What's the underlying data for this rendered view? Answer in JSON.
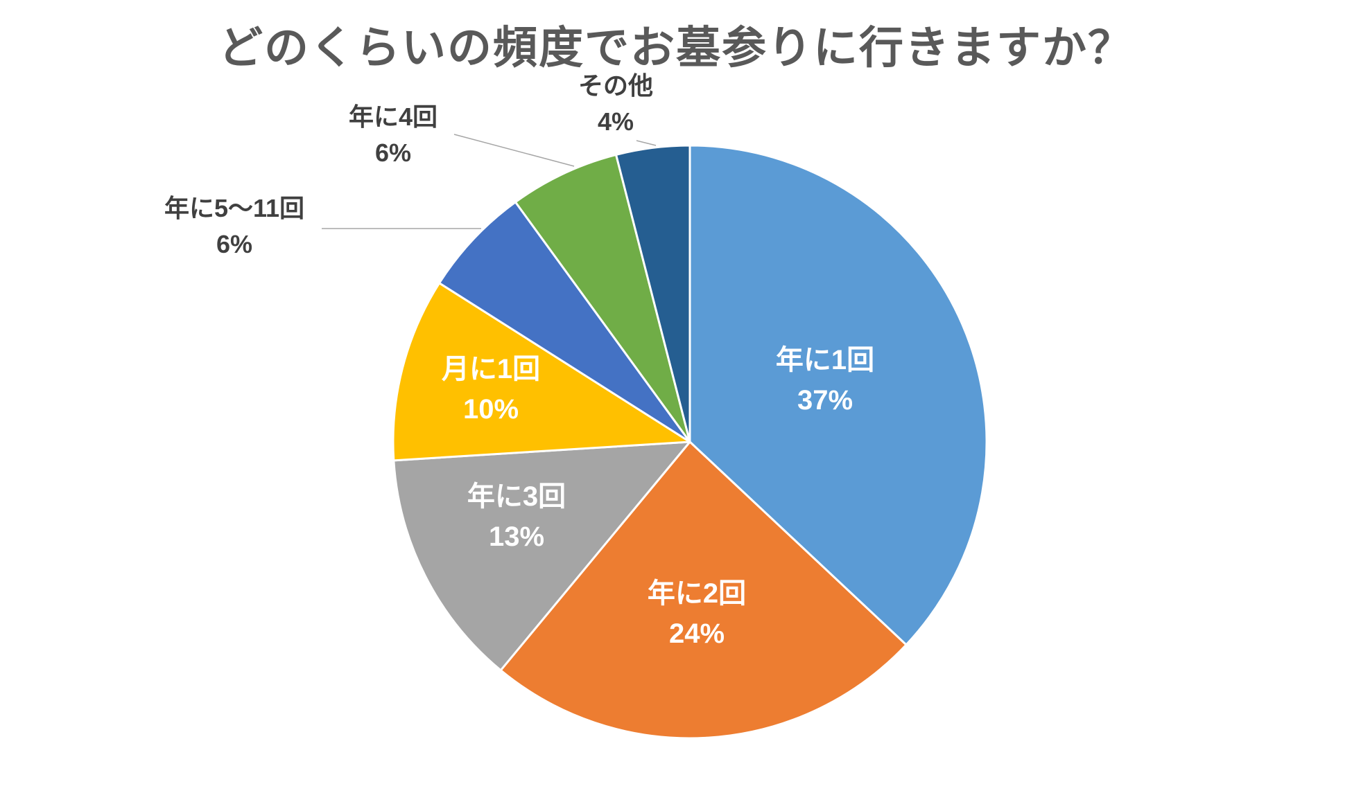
{
  "chart_data": {
    "type": "pie",
    "title": "どのくらいの頻度でお墓参りに行きますか？",
    "slices": [
      {
        "label": "年に1回",
        "percent_label": "37%",
        "value": 37,
        "color": "#5B9BD5",
        "label_color": "#ffffff",
        "label_mode": "inside"
      },
      {
        "label": "年に2回",
        "percent_label": "24%",
        "value": 24,
        "color": "#ED7D31",
        "label_color": "#ffffff",
        "label_mode": "inside"
      },
      {
        "label": "年に3回",
        "percent_label": "13%",
        "value": 13,
        "color": "#A5A5A5",
        "label_color": "#ffffff",
        "label_mode": "inside"
      },
      {
        "label": "月に1回",
        "percent_label": "10%",
        "value": 10,
        "color": "#FFC000",
        "label_color": "#ffffff",
        "label_mode": "inside"
      },
      {
        "label": "年に5～11回",
        "percent_label": "6%",
        "value": 6,
        "color": "#4472C4",
        "label_color": "#404040",
        "label_mode": "outside"
      },
      {
        "label": "年に4回",
        "percent_label": "6%",
        "value": 6,
        "color": "#70AD47",
        "label_color": "#404040",
        "label_mode": "outside"
      },
      {
        "label": "その他",
        "percent_label": "4%",
        "value": 4,
        "color": "#255E91",
        "label_color": "#404040",
        "label_mode": "outside"
      }
    ],
    "start_angle": "12 o'clock",
    "direction": "clockwise",
    "legend": "none"
  }
}
